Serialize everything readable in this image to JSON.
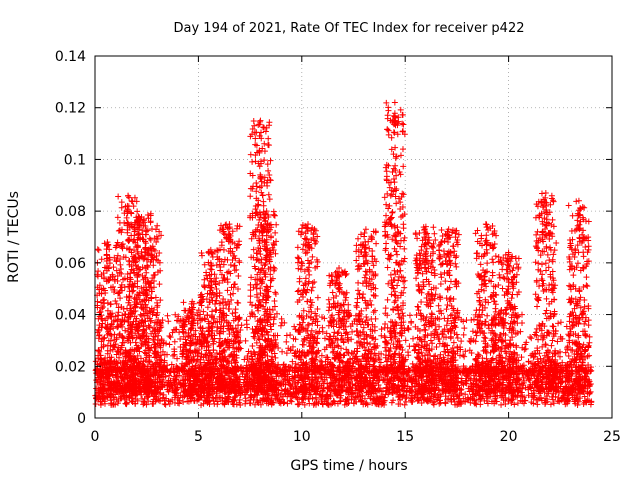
{
  "chart_data": {
    "type": "scatter",
    "title": "Day 194 of 2021, Rate Of TEC Index for receiver p422",
    "xlabel": "GPS time / hours",
    "ylabel": "ROTI / TECUs",
    "xlim": [
      0,
      25
    ],
    "ylim": [
      0,
      0.14
    ],
    "grid": true,
    "marker": "+",
    "marker_color": "#ff0000",
    "x_ticks": [
      0,
      5,
      10,
      15,
      20,
      25
    ],
    "x_tick_labels": [
      "0",
      "5",
      "10",
      "15",
      "20",
      "25"
    ],
    "y_ticks": [
      0,
      0.02,
      0.04,
      0.06,
      0.08,
      0.1,
      0.12,
      0.14
    ],
    "y_tick_labels": [
      "0",
      "0.02",
      "0.04",
      "0.06",
      "0.08",
      "0.1",
      "0.12",
      "0.14"
    ],
    "data_range_x": [
      0,
      24
    ],
    "baseline_band": [
      0.005,
      0.02
    ],
    "spikes": [
      {
        "x": 0.6,
        "y": 0.068
      },
      {
        "x": 1.6,
        "y": 0.086
      },
      {
        "x": 2.1,
        "y": 0.078
      },
      {
        "x": 2.7,
        "y": 0.079
      },
      {
        "x": 4.7,
        "y": 0.045
      },
      {
        "x": 5.6,
        "y": 0.065
      },
      {
        "x": 6.5,
        "y": 0.075
      },
      {
        "x": 8.0,
        "y": 0.115
      },
      {
        "x": 8.3,
        "y": 0.08
      },
      {
        "x": 10.3,
        "y": 0.075
      },
      {
        "x": 11.8,
        "y": 0.058
      },
      {
        "x": 13.1,
        "y": 0.073
      },
      {
        "x": 14.5,
        "y": 0.122
      },
      {
        "x": 16.0,
        "y": 0.074
      },
      {
        "x": 17.1,
        "y": 0.073
      },
      {
        "x": 18.9,
        "y": 0.075
      },
      {
        "x": 20.0,
        "y": 0.064
      },
      {
        "x": 21.8,
        "y": 0.087
      },
      {
        "x": 23.4,
        "y": 0.084
      }
    ]
  }
}
